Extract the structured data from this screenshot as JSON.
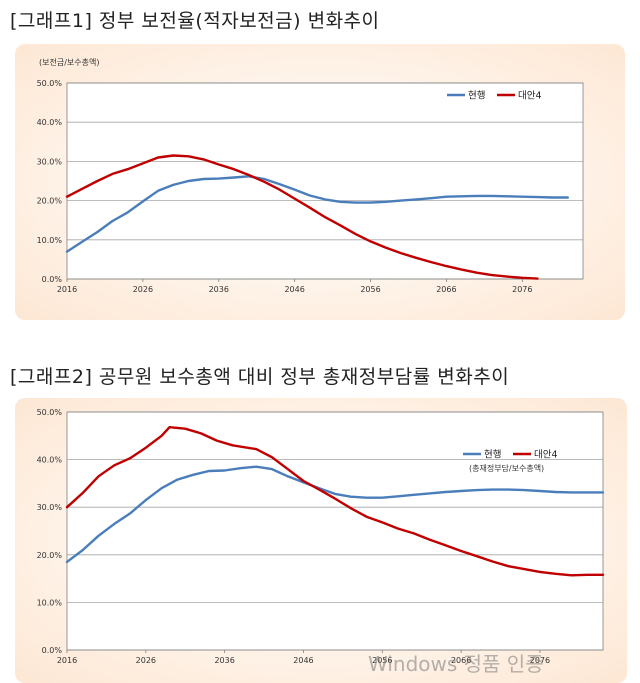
{
  "chart_data": [
    {
      "type": "line",
      "title": "[그래프1] 정부 보전율(적자보전금) 변화추이",
      "unit_label": "(보전금/보수총액)",
      "legend_position": "top-right",
      "xlim": [
        2016,
        2084
      ],
      "ylim": [
        0,
        50
      ],
      "x_ticks": [
        "2016",
        "2026",
        "2036",
        "2046",
        "2056",
        "2066",
        "2076"
      ],
      "y_ticks": [
        "0.0%",
        "10.0%",
        "20.0%",
        "30.0%",
        "40.0%",
        "50.0%"
      ],
      "series": [
        {
          "name": "현행",
          "color": "#4a7ebb",
          "points": [
            [
              2016,
              7
            ],
            [
              2018,
              9.5
            ],
            [
              2020,
              12
            ],
            [
              2022,
              14.8
            ],
            [
              2024,
              17
            ],
            [
              2026,
              19.8
            ],
            [
              2028,
              22.5
            ],
            [
              2030,
              24
            ],
            [
              2032,
              25
            ],
            [
              2034,
              25.5
            ],
            [
              2036,
              25.6
            ],
            [
              2038,
              25.9
            ],
            [
              2040,
              26.2
            ],
            [
              2042,
              25.5
            ],
            [
              2044,
              24.2
            ],
            [
              2046,
              22.8
            ],
            [
              2048,
              21.3
            ],
            [
              2050,
              20.3
            ],
            [
              2052,
              19.7
            ],
            [
              2054,
              19.5
            ],
            [
              2056,
              19.5
            ],
            [
              2058,
              19.7
            ],
            [
              2060,
              20
            ],
            [
              2062,
              20.3
            ],
            [
              2064,
              20.6
            ],
            [
              2066,
              21
            ],
            [
              2068,
              21.1
            ],
            [
              2070,
              21.2
            ],
            [
              2072,
              21.2
            ],
            [
              2074,
              21.1
            ],
            [
              2076,
              21
            ],
            [
              2078,
              20.9
            ],
            [
              2080,
              20.8
            ],
            [
              2082,
              20.8
            ]
          ]
        },
        {
          "name": "대안4",
          "color": "#c00000",
          "points": [
            [
              2016,
              21
            ],
            [
              2018,
              23
            ],
            [
              2020,
              25
            ],
            [
              2022,
              26.8
            ],
            [
              2024,
              28
            ],
            [
              2026,
              29.5
            ],
            [
              2028,
              31
            ],
            [
              2030,
              31.5
            ],
            [
              2032,
              31.3
            ],
            [
              2034,
              30.5
            ],
            [
              2036,
              29.2
            ],
            [
              2038,
              28
            ],
            [
              2040,
              26.5
            ],
            [
              2042,
              24.8
            ],
            [
              2044,
              22.8
            ],
            [
              2046,
              20.5
            ],
            [
              2048,
              18.2
            ],
            [
              2050,
              15.8
            ],
            [
              2052,
              13.7
            ],
            [
              2054,
              11.5
            ],
            [
              2056,
              9.6
            ],
            [
              2058,
              8
            ],
            [
              2060,
              6.6
            ],
            [
              2062,
              5.4
            ],
            [
              2064,
              4.3
            ],
            [
              2066,
              3.3
            ],
            [
              2068,
              2.4
            ],
            [
              2070,
              1.6
            ],
            [
              2072,
              1
            ],
            [
              2074,
              0.6
            ],
            [
              2076,
              0.3
            ],
            [
              2078,
              0.1
            ]
          ]
        }
      ]
    },
    {
      "type": "line",
      "title": "[그래프2] 공무원 보수총액 대비 정부 총재정부담률 변화추이",
      "unit_label": "(총재정부담/보수총액)",
      "legend_position": "top-right",
      "xlim": [
        2016,
        2084
      ],
      "ylim": [
        0,
        50
      ],
      "x_ticks": [
        "2016",
        "2026",
        "2036",
        "2046",
        "2056",
        "2066",
        "2076"
      ],
      "y_ticks": [
        "0.0%",
        "10.0%",
        "20.0%",
        "30.0%",
        "40.0%",
        "50.0%"
      ],
      "series": [
        {
          "name": "현행",
          "color": "#4a7ebb",
          "points": [
            [
              2016,
              18.5
            ],
            [
              2018,
              21
            ],
            [
              2020,
              24
            ],
            [
              2022,
              26.5
            ],
            [
              2024,
              28.7
            ],
            [
              2026,
              31.5
            ],
            [
              2028,
              34
            ],
            [
              2030,
              35.8
            ],
            [
              2032,
              36.8
            ],
            [
              2034,
              37.6
            ],
            [
              2036,
              37.7
            ],
            [
              2038,
              38.2
            ],
            [
              2040,
              38.5
            ],
            [
              2042,
              38
            ],
            [
              2044,
              36.5
            ],
            [
              2046,
              35.2
            ],
            [
              2048,
              34
            ],
            [
              2050,
              32.8
            ],
            [
              2052,
              32.2
            ],
            [
              2054,
              32
            ],
            [
              2056,
              32
            ],
            [
              2058,
              32.3
            ],
            [
              2060,
              32.6
            ],
            [
              2062,
              32.9
            ],
            [
              2064,
              33.2
            ],
            [
              2066,
              33.4
            ],
            [
              2068,
              33.6
            ],
            [
              2070,
              33.7
            ],
            [
              2072,
              33.7
            ],
            [
              2074,
              33.6
            ],
            [
              2076,
              33.4
            ],
            [
              2078,
              33.2
            ],
            [
              2080,
              33.1
            ],
            [
              2082,
              33.1
            ],
            [
              2084,
              33.1
            ]
          ]
        },
        {
          "name": "대안4",
          "color": "#c00000",
          "points": [
            [
              2016,
              30
            ],
            [
              2018,
              33
            ],
            [
              2020,
              36.5
            ],
            [
              2022,
              38.8
            ],
            [
              2024,
              40.3
            ],
            [
              2026,
              42.5
            ],
            [
              2028,
              45
            ],
            [
              2029,
              46.8
            ],
            [
              2031,
              46.5
            ],
            [
              2033,
              45.5
            ],
            [
              2035,
              44
            ],
            [
              2037,
              43
            ],
            [
              2040,
              42.2
            ],
            [
              2042,
              40.5
            ],
            [
              2044,
              38
            ],
            [
              2046,
              35.5
            ],
            [
              2048,
              33.7
            ],
            [
              2050,
              31.8
            ],
            [
              2052,
              29.8
            ],
            [
              2054,
              28
            ],
            [
              2056,
              26.8
            ],
            [
              2058,
              25.5
            ],
            [
              2060,
              24.5
            ],
            [
              2062,
              23.2
            ],
            [
              2064,
              22
            ],
            [
              2066,
              20.8
            ],
            [
              2068,
              19.7
            ],
            [
              2070,
              18.6
            ],
            [
              2072,
              17.6
            ],
            [
              2074,
              17
            ],
            [
              2076,
              16.4
            ],
            [
              2078,
              16
            ],
            [
              2080,
              15.7
            ],
            [
              2082,
              15.8
            ],
            [
              2084,
              15.8
            ]
          ]
        }
      ]
    }
  ],
  "watermark": "Windows 정품 인증"
}
